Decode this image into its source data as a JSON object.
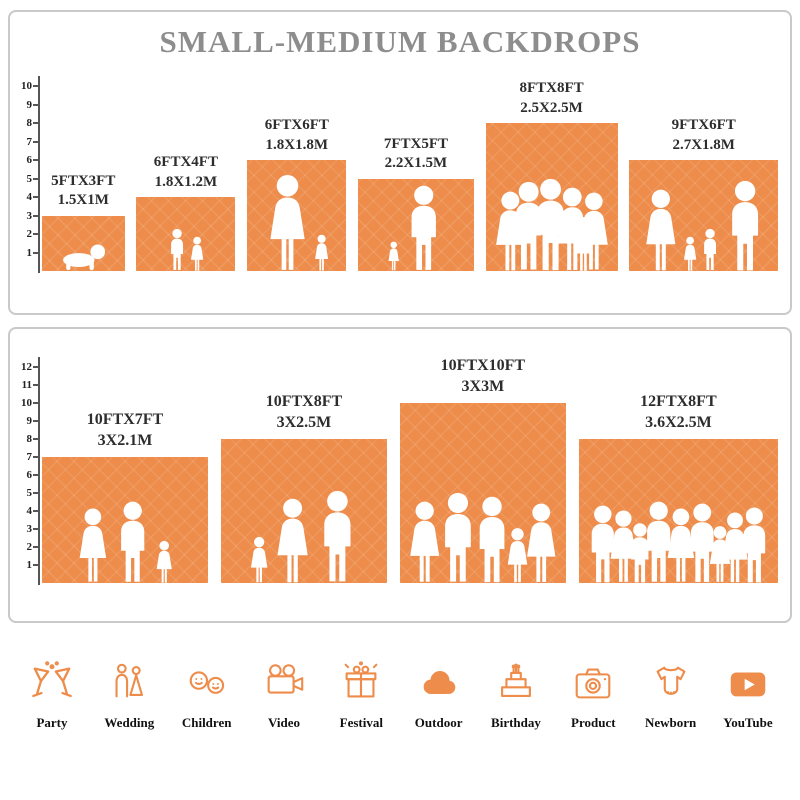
{
  "title": "SMALL-MEDIUM BACKDROPS",
  "accent_color": "#ED8C4B",
  "silhouette_color": "#ffffff",
  "chart_data": [
    {
      "type": "bar",
      "panel": "small-medium-backdrops",
      "title": "SMALL-MEDIUM BACKDROPS",
      "ylim": [
        0,
        10
      ],
      "grid": false,
      "categories": [
        "5FTX3FT",
        "6FTX4FT",
        "6FTX6FT",
        "7FTX5FT",
        "8FTX8FT",
        "9FTX6FT"
      ],
      "metric_labels": [
        "1.5X1M",
        "1.8X1.2M",
        "1.8X1.8M",
        "2.2X1.5M",
        "2.5X2.5M",
        "2.7X1.8M"
      ],
      "width_ft": [
        5,
        6,
        6,
        7,
        8,
        9
      ],
      "height_ft": [
        3,
        4,
        6,
        5,
        8,
        6
      ],
      "people": [
        [
          [
            "baby",
            1.5
          ]
        ],
        [
          [
            "boy",
            2.3
          ],
          [
            "girl",
            1.9
          ]
        ],
        [
          [
            "woman",
            5.3
          ],
          [
            "girl",
            2.0
          ]
        ],
        [
          [
            "girl",
            1.6
          ],
          [
            "man",
            4.7
          ]
        ],
        [
          [
            "woman",
            4.4
          ],
          [
            "man",
            4.9
          ],
          [
            "man",
            5.1
          ],
          [
            "woman",
            4.6
          ],
          [
            "girl",
            3.0
          ],
          [
            "woman",
            4.3
          ]
        ],
        [
          [
            "woman",
            4.5
          ],
          [
            "girl",
            1.9
          ],
          [
            "boy",
            2.3
          ],
          [
            "man",
            5.0
          ]
        ]
      ]
    },
    {
      "type": "bar",
      "panel": "medium-large-backdrops",
      "ylim": [
        0,
        12
      ],
      "grid": false,
      "categories": [
        "10FTX7FT",
        "10FTX8FT",
        "10FTX10FT",
        "12FTX8FT"
      ],
      "metric_labels": [
        "3X2.1M",
        "3X2.5M",
        "3X3M",
        "3.6X2.5M"
      ],
      "width_ft": [
        10,
        10,
        10,
        12
      ],
      "height_ft": [
        7,
        8,
        10,
        8
      ],
      "people": [
        [
          [
            "woman",
            4.2
          ],
          [
            "man",
            4.6
          ],
          [
            "girl",
            2.4
          ]
        ],
        [
          [
            "girl",
            2.6
          ],
          [
            "woman",
            4.8
          ],
          [
            "man",
            5.2
          ]
        ],
        [
          [
            "woman",
            4.6
          ],
          [
            "man",
            5.1
          ],
          [
            "man",
            4.9
          ],
          [
            "girl",
            3.1
          ],
          [
            "woman",
            4.5
          ]
        ],
        [
          [
            "man",
            4.4
          ],
          [
            "woman",
            4.1
          ],
          [
            "boy",
            3.4
          ],
          [
            "man",
            4.6
          ],
          [
            "woman",
            4.2
          ],
          [
            "man",
            4.5
          ],
          [
            "girl",
            3.2
          ],
          [
            "woman",
            4.0
          ],
          [
            "man",
            4.3
          ]
        ]
      ]
    }
  ],
  "categories_row": [
    {
      "label": "Party",
      "icon": "party-icon"
    },
    {
      "label": "Wedding",
      "icon": "wedding-icon"
    },
    {
      "label": "Children",
      "icon": "children-icon"
    },
    {
      "label": "Video",
      "icon": "video-icon"
    },
    {
      "label": "Festival",
      "icon": "festival-icon"
    },
    {
      "label": "Outdoor",
      "icon": "outdoor-icon"
    },
    {
      "label": "Birthday",
      "icon": "birthday-icon"
    },
    {
      "label": "Product",
      "icon": "product-icon"
    },
    {
      "label": "Newborn",
      "icon": "newborn-icon"
    },
    {
      "label": "YouTube",
      "icon": "youtube-icon"
    }
  ]
}
